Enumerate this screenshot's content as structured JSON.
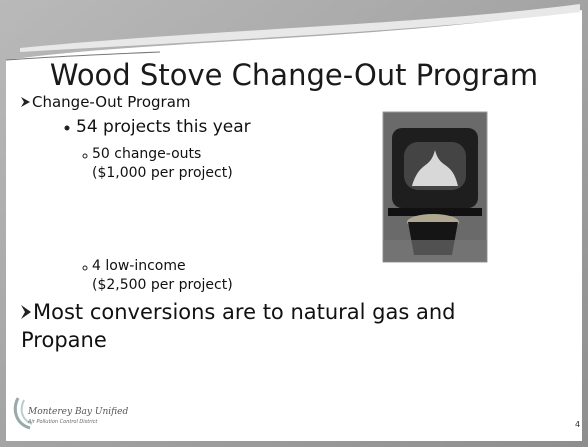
{
  "slide": {
    "title": "Wood Stove Change-Out Program",
    "bullets": [
      {
        "text": "Change-Out Program",
        "children": [
          {
            "text": "54 projects this year",
            "children": [
              {
                "lines": [
                  "50 change-outs",
                  "($1,000 per project)"
                ]
              },
              {
                "lines": [
                  "4 low-income",
                  "($2,500 per project)"
                ]
              }
            ]
          }
        ]
      },
      {
        "lines": [
          "Most conversions are to natural gas and",
          "Propane"
        ]
      }
    ],
    "logo": {
      "name": "Monterey Bay Unified",
      "subtitle": "Air Pollution Control District"
    },
    "page_number": "4"
  }
}
